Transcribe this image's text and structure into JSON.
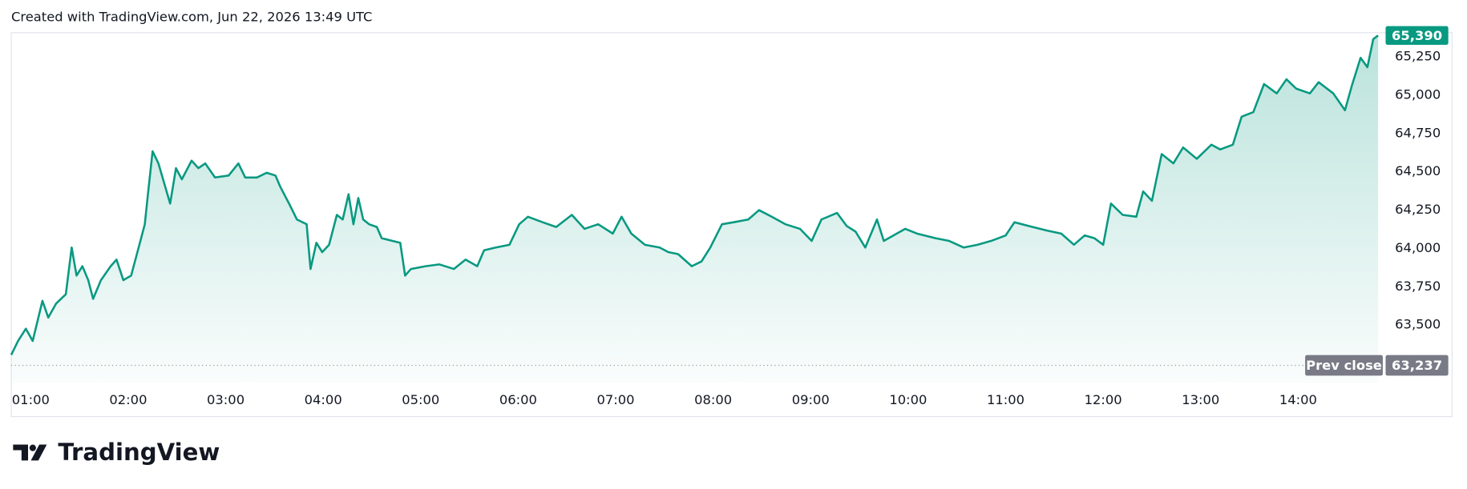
{
  "chart_data": {
    "type": "line",
    "caption": "Created with TradingView.com, Jun 22, 2026 13:49 UTC",
    "watermark": "TradingView",
    "color": "#089981",
    "grid": false,
    "xlim": [
      0.8,
      14.82
    ],
    "xticks": [
      {
        "value": 1,
        "label": "01:00"
      },
      {
        "value": 2,
        "label": "02:00"
      },
      {
        "value": 3,
        "label": "03:00"
      },
      {
        "value": 4,
        "label": "04:00"
      },
      {
        "value": 5,
        "label": "05:00"
      },
      {
        "value": 6,
        "label": "06:00"
      },
      {
        "value": 7,
        "label": "07:00"
      },
      {
        "value": 8,
        "label": "08:00"
      },
      {
        "value": 9,
        "label": "09:00"
      },
      {
        "value": 10,
        "label": "10:00"
      },
      {
        "value": 11,
        "label": "11:00"
      },
      {
        "value": 12,
        "label": "12:00"
      },
      {
        "value": 13,
        "label": "13:00"
      },
      {
        "value": 14,
        "label": "14:00"
      }
    ],
    "ylim": [
      63122,
      65408
    ],
    "yticks": [
      {
        "value": 63500,
        "label": "63,500"
      },
      {
        "value": 63750,
        "label": "63,750"
      },
      {
        "value": 64000,
        "label": "64,000"
      },
      {
        "value": 64250,
        "label": "64,250"
      },
      {
        "value": 64500,
        "label": "64,500"
      },
      {
        "value": 64750,
        "label": "64,750"
      },
      {
        "value": 65000,
        "label": "65,000"
      },
      {
        "value": 65250,
        "label": "65,250"
      }
    ],
    "last_price": {
      "value": 65390,
      "label": "65,390"
    },
    "prev_close": {
      "name": "Prev close",
      "value": 63237,
      "label": "63,237"
    },
    "x": [
      0.8,
      0.87,
      0.95,
      1.02,
      1.12,
      1.18,
      1.26,
      1.36,
      1.42,
      1.47,
      1.53,
      1.59,
      1.64,
      1.72,
      1.82,
      1.88,
      1.95,
      2.03,
      2.12,
      2.17,
      2.2,
      2.25,
      2.31,
      2.38,
      2.43,
      2.49,
      2.55,
      2.65,
      2.72,
      2.79,
      2.89,
      3.03,
      3.13,
      3.2,
      3.32,
      3.42,
      3.51,
      3.56,
      3.66,
      3.73,
      3.83,
      3.87,
      3.93,
      3.99,
      4.06,
      4.14,
      4.2,
      4.26,
      4.31,
      4.36,
      4.41,
      4.47,
      4.55,
      4.6,
      4.71,
      4.79,
      4.84,
      4.9,
      5.05,
      5.19,
      5.34,
      5.46,
      5.58,
      5.65,
      5.77,
      5.91,
      6.01,
      6.1,
      6.25,
      6.39,
      6.55,
      6.68,
      6.82,
      6.97,
      7.06,
      7.16,
      7.3,
      7.45,
      7.54,
      7.64,
      7.78,
      7.88,
      7.97,
      8.09,
      8.21,
      8.36,
      8.47,
      8.6,
      8.74,
      8.89,
      9.01,
      9.11,
      9.27,
      9.37,
      9.46,
      9.56,
      9.68,
      9.75,
      9.85,
      9.97,
      10.09,
      10.28,
      10.42,
      10.57,
      10.71,
      10.85,
      11.0,
      11.09,
      11.24,
      11.43,
      11.57,
      11.7,
      11.81,
      11.91,
      12.0,
      12.08,
      12.2,
      12.34,
      12.41,
      12.5,
      12.6,
      12.72,
      12.82,
      12.96,
      13.11,
      13.2,
      13.33,
      13.42,
      13.54,
      13.65,
      13.78,
      13.88,
      13.98,
      14.12,
      14.21,
      14.36,
      14.48,
      14.55,
      14.64,
      14.71,
      14.77,
      14.82
    ],
    "values": [
      63305,
      63396,
      63476,
      63396,
      63658,
      63549,
      63640,
      63701,
      64006,
      63823,
      63884,
      63793,
      63671,
      63793,
      63884,
      63927,
      63793,
      63823,
      64037,
      64158,
      64341,
      64634,
      64555,
      64402,
      64293,
      64524,
      64451,
      64573,
      64524,
      64555,
      64463,
      64476,
      64555,
      64463,
      64463,
      64494,
      64476,
      64402,
      64280,
      64189,
      64158,
      63866,
      64037,
      63976,
      64024,
      64219,
      64189,
      64354,
      64158,
      64329,
      64189,
      64158,
      64140,
      64067,
      64049,
      64037,
      63823,
      63866,
      63884,
      63896,
      63866,
      63927,
      63884,
      63988,
      64006,
      64024,
      64158,
      64207,
      64171,
      64140,
      64219,
      64128,
      64158,
      64097,
      64207,
      64097,
      64024,
      64006,
      63976,
      63963,
      63884,
      63915,
      64006,
      64158,
      64171,
      64189,
      64250,
      64207,
      64158,
      64128,
      64049,
      64189,
      64232,
      64146,
      64110,
      64006,
      64189,
      64049,
      64085,
      64128,
      64097,
      64067,
      64049,
      64006,
      64024,
      64049,
      64085,
      64171,
      64146,
      64116,
      64097,
      64024,
      64085,
      64067,
      64024,
      64293,
      64219,
      64207,
      64372,
      64311,
      64616,
      64555,
      64659,
      64585,
      64677,
      64646,
      64677,
      64860,
      64890,
      65073,
      65012,
      65104,
      65043,
      65012,
      65085,
      65012,
      64902,
      65061,
      65244,
      65183,
      65366,
      65390
    ]
  }
}
